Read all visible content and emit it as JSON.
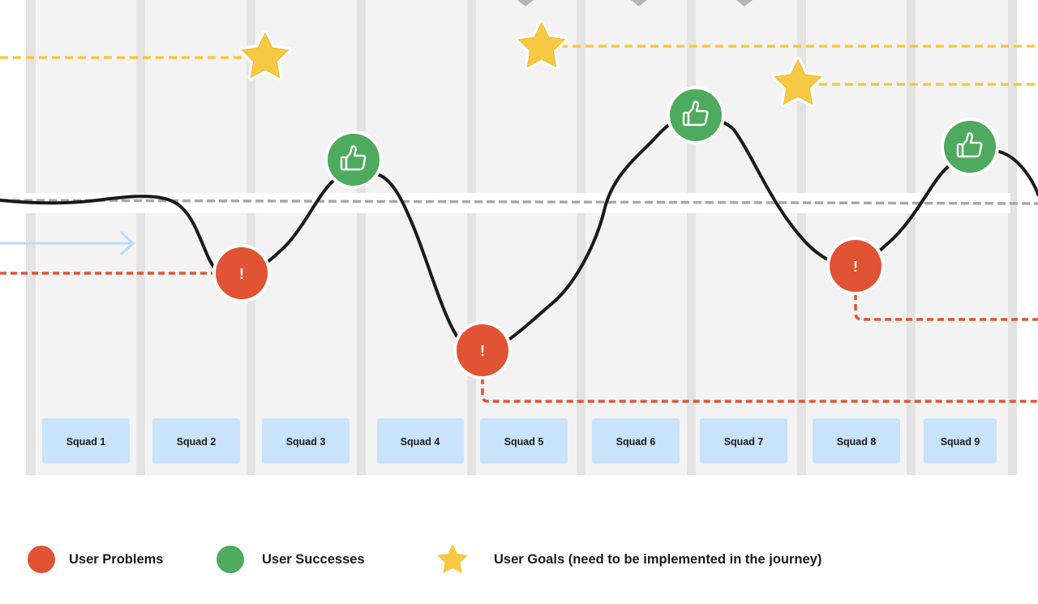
{
  "squads": [
    "Squad 1",
    "Squad 2",
    "Squad 3",
    "Squad 4",
    "Squad 5",
    "Squad 6",
    "Squad 7",
    "Squad 8",
    "Squad 9"
  ],
  "markers": {
    "problem_symbol": "!",
    "success_icon": "thumbs-up-icon",
    "goal_icon": "star-icon"
  },
  "legend": {
    "problems_label": "User Problems",
    "successes_label": "User Successes",
    "goals_label": "User Goals (need to be implemented in the journey)"
  },
  "colors": {
    "problem": "#E05433",
    "success": "#4DAA5F",
    "goal": "#F7C843",
    "squad_box": "#C9E3FB",
    "column_bg": "#F3F3F3",
    "column_divider": "#E3E3E3",
    "journey_line": "#1A1A1A",
    "baseline": "#A9A9A9",
    "arrow": "#B8DBF8"
  }
}
